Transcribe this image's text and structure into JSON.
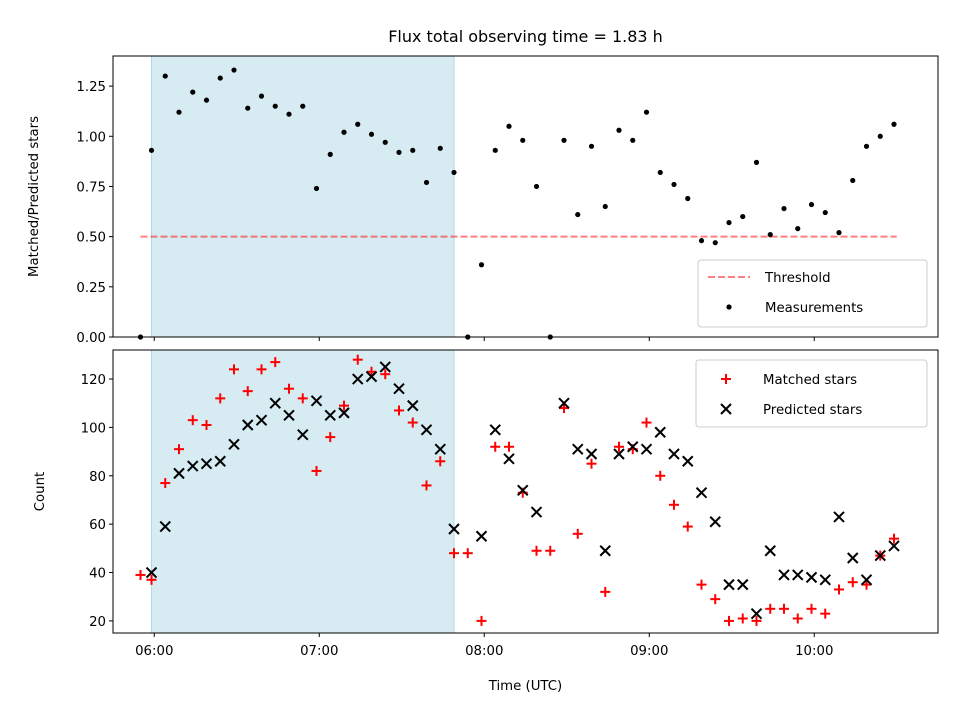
{
  "chart_data": [
    {
      "type": "scatter",
      "title": "Flux total observing time = 1.83 h",
      "xlabel": "",
      "ylabel": "Matched/Predicted stars",
      "xlim": [
        "05:45",
        "10:45"
      ],
      "ylim": [
        0,
        1.4
      ],
      "yticks": [
        0.0,
        0.25,
        0.5,
        0.75,
        1.0,
        1.25
      ],
      "ytick_labels": [
        "0.00",
        "0.25",
        "0.50",
        "0.75",
        "1.00",
        "1.25"
      ],
      "shaded_span": {
        "x_start": "05:59",
        "x_end": "07:49",
        "color": "#add8e6"
      },
      "threshold": {
        "name": "Threshold",
        "y": 0.5,
        "x_start": "05:55",
        "x_end": "10:30",
        "color": "#ff0000"
      },
      "legend": {
        "position": "lower-right",
        "entries": [
          "Threshold",
          "Measurements"
        ]
      },
      "series": [
        {
          "name": "Measurements",
          "marker": "dot",
          "color": "#000000",
          "points": [
            [
              "05:55",
              0.0
            ],
            [
              "05:59",
              0.93
            ],
            [
              "06:04",
              1.3
            ],
            [
              "06:09",
              1.12
            ],
            [
              "06:14",
              1.22
            ],
            [
              "06:19",
              1.18
            ],
            [
              "06:24",
              1.29
            ],
            [
              "06:29",
              1.33
            ],
            [
              "06:34",
              1.14
            ],
            [
              "06:39",
              1.2
            ],
            [
              "06:44",
              1.15
            ],
            [
              "06:49",
              1.11
            ],
            [
              "06:54",
              1.15
            ],
            [
              "06:59",
              0.74
            ],
            [
              "07:04",
              0.91
            ],
            [
              "07:09",
              1.02
            ],
            [
              "07:14",
              1.06
            ],
            [
              "07:19",
              1.01
            ],
            [
              "07:24",
              0.97
            ],
            [
              "07:29",
              0.92
            ],
            [
              "07:34",
              0.93
            ],
            [
              "07:39",
              0.77
            ],
            [
              "07:44",
              0.94
            ],
            [
              "07:49",
              0.82
            ],
            [
              "07:54",
              0.0
            ],
            [
              "07:59",
              0.36
            ],
            [
              "08:04",
              0.93
            ],
            [
              "08:09",
              1.05
            ],
            [
              "08:14",
              0.98
            ],
            [
              "08:19",
              0.75
            ],
            [
              "08:24",
              0.0
            ],
            [
              "08:29",
              0.98
            ],
            [
              "08:34",
              0.61
            ],
            [
              "08:39",
              0.95
            ],
            [
              "08:44",
              0.65
            ],
            [
              "08:49",
              1.03
            ],
            [
              "08:54",
              0.98
            ],
            [
              "08:59",
              1.12
            ],
            [
              "09:04",
              0.82
            ],
            [
              "09:09",
              0.76
            ],
            [
              "09:14",
              0.69
            ],
            [
              "09:19",
              0.48
            ],
            [
              "09:24",
              0.47
            ],
            [
              "09:29",
              0.57
            ],
            [
              "09:34",
              0.6
            ],
            [
              "09:39",
              0.87
            ],
            [
              "09:44",
              0.51
            ],
            [
              "09:49",
              0.64
            ],
            [
              "09:54",
              0.54
            ],
            [
              "09:59",
              0.66
            ],
            [
              "10:04",
              0.62
            ],
            [
              "10:09",
              0.52
            ],
            [
              "10:14",
              0.78
            ],
            [
              "10:19",
              0.95
            ],
            [
              "10:24",
              1.0
            ],
            [
              "10:29",
              1.06
            ]
          ]
        }
      ]
    },
    {
      "type": "scatter",
      "title": "",
      "xlabel": "Time (UTC)",
      "ylabel": "Count",
      "xlim": [
        "05:45",
        "10:45"
      ],
      "ylim": [
        15,
        132
      ],
      "yticks": [
        20,
        40,
        60,
        80,
        100,
        120
      ],
      "ytick_labels": [
        "20",
        "40",
        "60",
        "80",
        "100",
        "120"
      ],
      "xticks": [
        "06:00",
        "07:00",
        "08:00",
        "09:00",
        "10:00"
      ],
      "xtick_labels": [
        "06:00",
        "07:00",
        "08:00",
        "09:00",
        "10:00"
      ],
      "shaded_span": {
        "x_start": "05:59",
        "x_end": "07:49",
        "color": "#add8e6"
      },
      "legend": {
        "position": "top-right",
        "entries": [
          "Matched stars",
          "Predicted stars"
        ]
      },
      "series": [
        {
          "name": "Matched stars",
          "marker": "plus",
          "color": "#ff0000",
          "points": [
            [
              "05:55",
              39
            ],
            [
              "05:59",
              37
            ],
            [
              "06:04",
              77
            ],
            [
              "06:09",
              91
            ],
            [
              "06:14",
              103
            ],
            [
              "06:19",
              101
            ],
            [
              "06:24",
              112
            ],
            [
              "06:29",
              124
            ],
            [
              "06:34",
              115
            ],
            [
              "06:39",
              124
            ],
            [
              "06:44",
              127
            ],
            [
              "06:49",
              116
            ],
            [
              "06:54",
              112
            ],
            [
              "06:59",
              82
            ],
            [
              "07:04",
              96
            ],
            [
              "07:09",
              109
            ],
            [
              "07:14",
              128
            ],
            [
              "07:19",
              123
            ],
            [
              "07:24",
              122
            ],
            [
              "07:29",
              107
            ],
            [
              "07:34",
              102
            ],
            [
              "07:39",
              76
            ],
            [
              "07:44",
              86
            ],
            [
              "07:49",
              48
            ],
            [
              "07:54",
              48
            ],
            [
              "07:59",
              20
            ],
            [
              "08:04",
              92
            ],
            [
              "08:09",
              92
            ],
            [
              "08:14",
              73
            ],
            [
              "08:19",
              49
            ],
            [
              "08:24",
              49
            ],
            [
              "08:29",
              108
            ],
            [
              "08:34",
              56
            ],
            [
              "08:39",
              85
            ],
            [
              "08:44",
              32
            ],
            [
              "08:49",
              92
            ],
            [
              "08:54",
              91
            ],
            [
              "08:59",
              102
            ],
            [
              "09:04",
              80
            ],
            [
              "09:09",
              68
            ],
            [
              "09:14",
              59
            ],
            [
              "09:19",
              35
            ],
            [
              "09:24",
              29
            ],
            [
              "09:29",
              20
            ],
            [
              "09:34",
              21
            ],
            [
              "09:39",
              20
            ],
            [
              "09:44",
              25
            ],
            [
              "09:49",
              25
            ],
            [
              "09:54",
              21
            ],
            [
              "09:59",
              25
            ],
            [
              "10:04",
              23
            ],
            [
              "10:09",
              33
            ],
            [
              "10:14",
              36
            ],
            [
              "10:19",
              35
            ],
            [
              "10:24",
              47
            ],
            [
              "10:29",
              54
            ]
          ]
        },
        {
          "name": "Predicted stars",
          "marker": "x",
          "color": "#000000",
          "points": [
            [
              "05:59",
              40
            ],
            [
              "06:04",
              59
            ],
            [
              "06:09",
              81
            ],
            [
              "06:14",
              84
            ],
            [
              "06:19",
              85
            ],
            [
              "06:24",
              86
            ],
            [
              "06:29",
              93
            ],
            [
              "06:34",
              101
            ],
            [
              "06:39",
              103
            ],
            [
              "06:44",
              110
            ],
            [
              "06:49",
              105
            ],
            [
              "06:54",
              97
            ],
            [
              "06:59",
              111
            ],
            [
              "07:04",
              105
            ],
            [
              "07:09",
              106
            ],
            [
              "07:14",
              120
            ],
            [
              "07:19",
              121
            ],
            [
              "07:24",
              125
            ],
            [
              "07:29",
              116
            ],
            [
              "07:34",
              109
            ],
            [
              "07:39",
              99
            ],
            [
              "07:44",
              91
            ],
            [
              "07:49",
              58
            ],
            [
              "07:59",
              55
            ],
            [
              "08:04",
              99
            ],
            [
              "08:09",
              87
            ],
            [
              "08:14",
              74
            ],
            [
              "08:19",
              65
            ],
            [
              "08:29",
              110
            ],
            [
              "08:34",
              91
            ],
            [
              "08:39",
              89
            ],
            [
              "08:44",
              49
            ],
            [
              "08:49",
              89
            ],
            [
              "08:54",
              92
            ],
            [
              "08:59",
              91
            ],
            [
              "09:04",
              98
            ],
            [
              "09:09",
              89
            ],
            [
              "09:14",
              86
            ],
            [
              "09:19",
              73
            ],
            [
              "09:24",
              61
            ],
            [
              "09:29",
              35
            ],
            [
              "09:34",
              35
            ],
            [
              "09:39",
              23
            ],
            [
              "09:44",
              49
            ],
            [
              "09:49",
              39
            ],
            [
              "09:54",
              39
            ],
            [
              "09:59",
              38
            ],
            [
              "10:04",
              37
            ],
            [
              "10:09",
              63
            ],
            [
              "10:14",
              46
            ],
            [
              "10:19",
              37
            ],
            [
              "10:24",
              47
            ],
            [
              "10:29",
              51
            ]
          ]
        }
      ]
    }
  ]
}
